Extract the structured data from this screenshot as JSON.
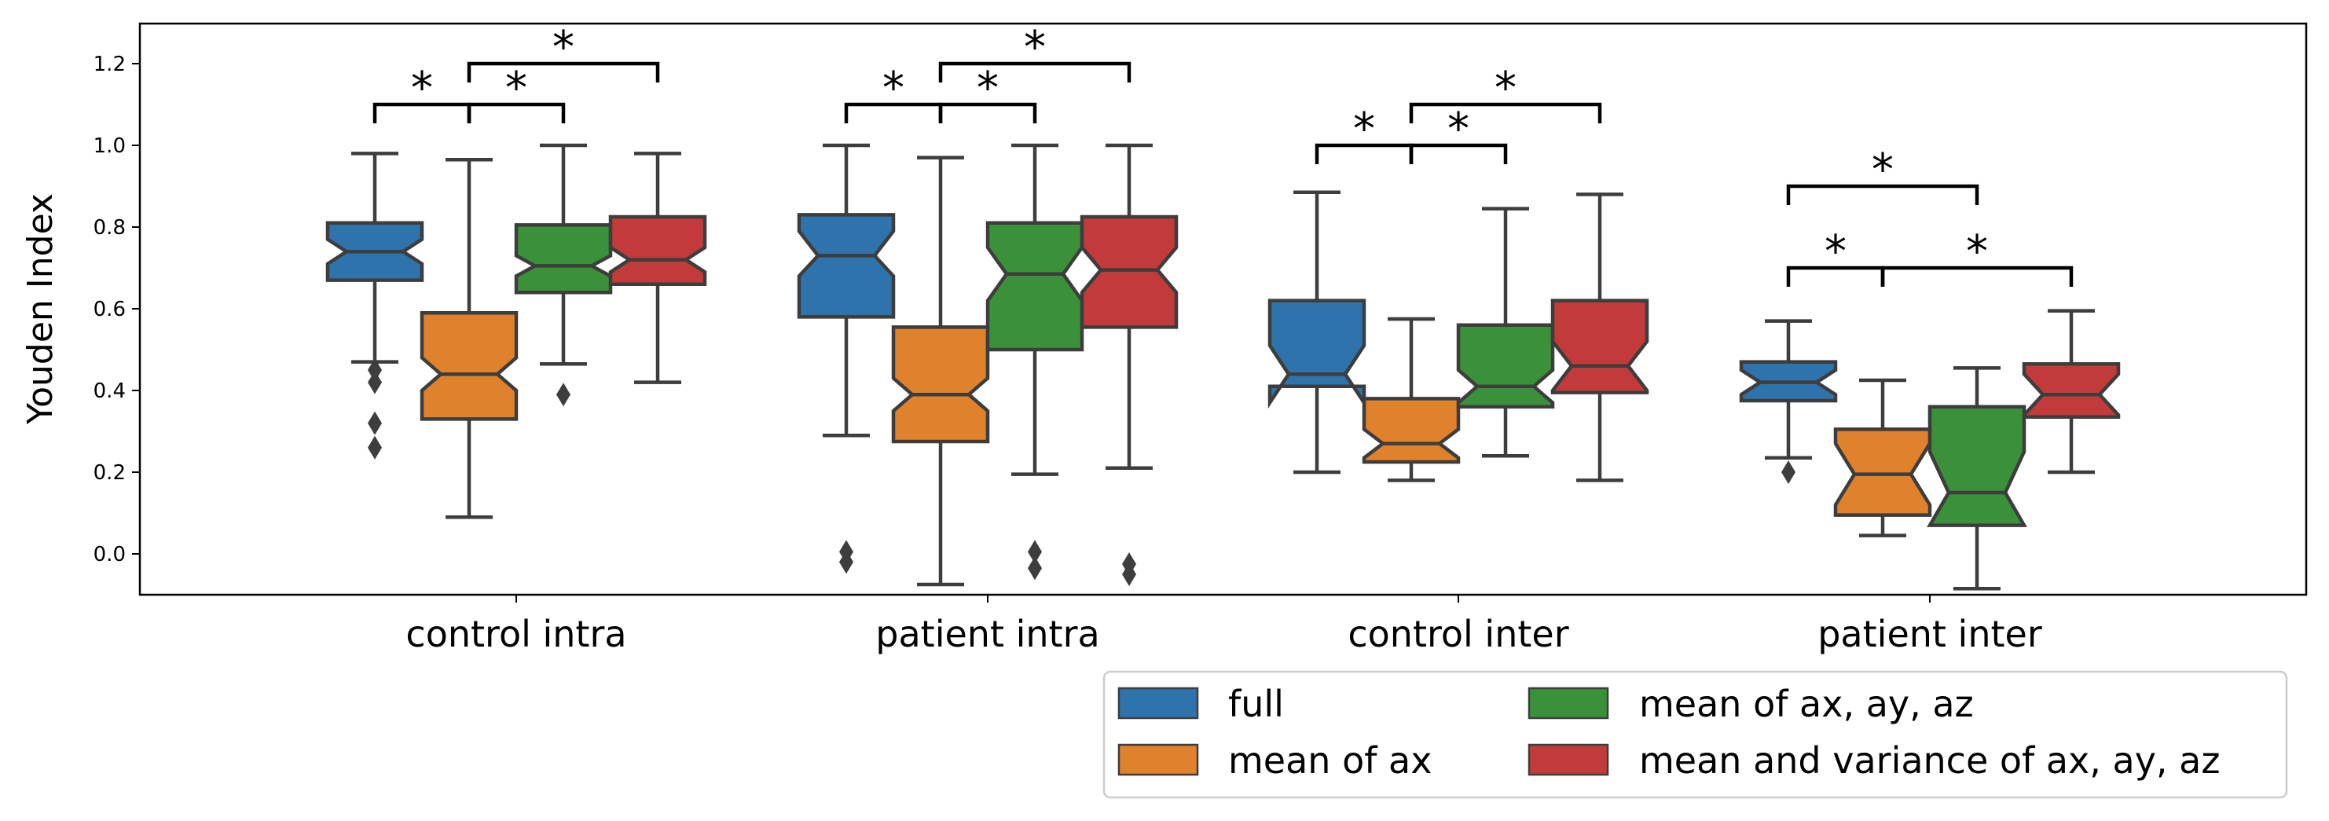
{
  "chart_data": {
    "type": "boxplot",
    "ylabel": "Youden Index",
    "ylim": [
      -0.1,
      1.3
    ],
    "yticks": [
      "0.0",
      "0.2",
      "0.4",
      "0.6",
      "0.8",
      "1.0",
      "1.2"
    ],
    "notched": true,
    "categories": [
      "control intra",
      "patient intra",
      "control inter",
      "patient inter"
    ],
    "series": [
      {
        "name": "full",
        "color": "#2e73ac",
        "boxes": [
          {
            "whislo": 0.47,
            "q1": 0.67,
            "med": 0.74,
            "q3": 0.81,
            "whishi": 0.98,
            "notch": [
              0.71,
              0.77
            ],
            "fliers": [
              0.45,
              0.42,
              0.32,
              0.26
            ]
          },
          {
            "whislo": 0.29,
            "q1": 0.58,
            "med": 0.73,
            "q3": 0.83,
            "whishi": 1.0,
            "notch": [
              0.68,
              0.79
            ],
            "fliers": [
              0.005,
              -0.02
            ]
          },
          {
            "whislo": 0.2,
            "q1": 0.41,
            "med": 0.44,
            "q3": 0.62,
            "whishi": 0.885,
            "notch": [
              0.37,
              0.51
            ],
            "fliers": []
          },
          {
            "whislo": 0.235,
            "q1": 0.375,
            "med": 0.42,
            "q3": 0.47,
            "whishi": 0.57,
            "notch": [
              0.39,
              0.45
            ],
            "fliers": [
              0.2
            ]
          }
        ]
      },
      {
        "name": "mean of ax",
        "color": "#e0812b",
        "boxes": [
          {
            "whislo": 0.09,
            "q1": 0.33,
            "med": 0.44,
            "q3": 0.59,
            "whishi": 0.965,
            "notch": [
              0.4,
              0.48
            ],
            "fliers": []
          },
          {
            "whislo": -0.075,
            "q1": 0.275,
            "med": 0.39,
            "q3": 0.555,
            "whishi": 0.97,
            "notch": [
              0.35,
              0.43
            ],
            "fliers": []
          },
          {
            "whislo": 0.18,
            "q1": 0.225,
            "med": 0.27,
            "q3": 0.38,
            "whishi": 0.575,
            "notch": [
              0.235,
              0.305
            ],
            "fliers": []
          },
          {
            "whislo": 0.045,
            "q1": 0.095,
            "med": 0.195,
            "q3": 0.305,
            "whishi": 0.425,
            "notch": [
              0.12,
              0.27
            ],
            "fliers": []
          }
        ]
      },
      {
        "name": "mean of ax, ay, az",
        "color": "#3b913a",
        "boxes": [
          {
            "whislo": 0.465,
            "q1": 0.64,
            "med": 0.705,
            "q3": 0.805,
            "whishi": 1.0,
            "notch": [
              0.68,
              0.73
            ],
            "fliers": [
              0.39
            ]
          },
          {
            "whislo": 0.195,
            "q1": 0.5,
            "med": 0.685,
            "q3": 0.81,
            "whishi": 1.0,
            "notch": [
              0.62,
              0.75
            ],
            "fliers": [
              0.005,
              -0.035
            ]
          },
          {
            "whislo": 0.24,
            "q1": 0.36,
            "med": 0.41,
            "q3": 0.56,
            "whishi": 0.845,
            "notch": [
              0.37,
              0.45
            ],
            "fliers": []
          },
          {
            "whislo": -0.085,
            "q1": 0.07,
            "med": 0.15,
            "q3": 0.36,
            "whishi": 0.455,
            "notch": [
              0.07,
              0.25
            ],
            "fliers": []
          }
        ]
      },
      {
        "name": "mean and variance of ax, ay, az",
        "color": "#c23b3a",
        "boxes": [
          {
            "whislo": 0.42,
            "q1": 0.66,
            "med": 0.72,
            "q3": 0.825,
            "whishi": 0.98,
            "notch": [
              0.69,
              0.75
            ],
            "fliers": []
          },
          {
            "whislo": 0.21,
            "q1": 0.555,
            "med": 0.695,
            "q3": 0.825,
            "whishi": 1.0,
            "notch": [
              0.64,
              0.75
            ],
            "fliers": [
              -0.025,
              -0.05
            ]
          },
          {
            "whislo": 0.18,
            "q1": 0.395,
            "med": 0.46,
            "q3": 0.62,
            "whishi": 0.88,
            "notch": [
              0.4,
              0.52
            ],
            "fliers": []
          },
          {
            "whislo": 0.2,
            "q1": 0.335,
            "med": 0.39,
            "q3": 0.465,
            "whishi": 0.595,
            "notch": [
              0.34,
              0.44
            ],
            "fliers": []
          }
        ]
      }
    ],
    "significance": [
      {
        "group": 0,
        "from": 0,
        "to": 1,
        "level": 1.1,
        "label": "*",
        "label_at": "left"
      },
      {
        "group": 0,
        "from": 1,
        "to": 2,
        "level": 1.1,
        "label": "*",
        "label_at": "right"
      },
      {
        "group": 0,
        "from": 1,
        "to": 3,
        "level": 1.2,
        "label": "*",
        "label_at": "center"
      },
      {
        "group": 1,
        "from": 0,
        "to": 1,
        "level": 1.1,
        "label": "*",
        "label_at": "left"
      },
      {
        "group": 1,
        "from": 1,
        "to": 2,
        "level": 1.1,
        "label": "*",
        "label_at": "right"
      },
      {
        "group": 1,
        "from": 1,
        "to": 3,
        "level": 1.2,
        "label": "*",
        "label_at": "center"
      },
      {
        "group": 2,
        "from": 0,
        "to": 1,
        "level": 1.0,
        "label": "*",
        "label_at": "left"
      },
      {
        "group": 2,
        "from": 1,
        "to": 2,
        "level": 1.0,
        "label": "*",
        "label_at": "right"
      },
      {
        "group": 2,
        "from": 1,
        "to": 3,
        "level": 1.1,
        "label": "*",
        "label_at": "center"
      },
      {
        "group": 3,
        "from": 0,
        "to": 1,
        "level": 0.7,
        "label": "*",
        "label_at": "left"
      },
      {
        "group": 3,
        "from": 1,
        "to": 3,
        "level": 0.7,
        "label": "*",
        "label_at": "center"
      },
      {
        "group": 3,
        "from": 0,
        "to": 2,
        "level": 0.9,
        "label": "*",
        "label_at": "center"
      }
    ],
    "legend": {
      "placement": "lower-right, below axes",
      "columns": 2,
      "entries": [
        "full",
        "mean of ax",
        "mean of ax, ay, az",
        "mean and variance of ax, ay, az"
      ]
    }
  }
}
